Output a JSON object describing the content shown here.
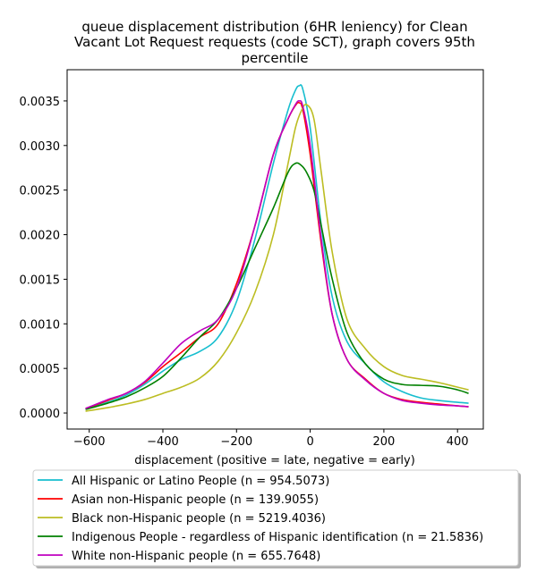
{
  "chart_data": {
    "type": "line",
    "title_lines": [
      "queue displacement distribution (6HR leniency) for Clean",
      "Vacant Lot Request  requests (code SCT), graph covers 95th",
      "percentile"
    ],
    "xlabel": "displacement (positive = late, negative = early)",
    "ylabel": "",
    "xlim": [
      -660,
      470
    ],
    "ylim": [
      -0.00018,
      0.00385
    ],
    "xticks": [
      -600,
      -400,
      -200,
      0,
      200,
      400
    ],
    "xtick_labels": [
      "−600",
      "−400",
      "−200",
      "0",
      "200",
      "400"
    ],
    "yticks": [
      0.0,
      0.0005,
      0.001,
      0.0015,
      0.002,
      0.0025,
      0.003,
      0.0035
    ],
    "ytick_labels": [
      "0.0000",
      "0.0005",
      "0.0010",
      "0.0015",
      "0.0020",
      "0.0025",
      "0.0030",
      "0.0035"
    ],
    "grid": false,
    "legend_position": "below",
    "series": [
      {
        "name": "All Hispanic or Latino People (n = 954.5073)",
        "color": "#17becf",
        "x": [
          -610,
          -550,
          -500,
          -450,
          -400,
          -350,
          -300,
          -250,
          -200,
          -150,
          -100,
          -60,
          -40,
          -30,
          -20,
          0,
          30,
          60,
          100,
          150,
          200,
          250,
          300,
          350,
          400,
          430
        ],
        "y": [
          5e-05,
          0.00012,
          0.0002,
          0.00032,
          0.00047,
          0.0006,
          0.00069,
          0.00085,
          0.00125,
          0.00195,
          0.0028,
          0.0034,
          0.00362,
          0.00367,
          0.00363,
          0.0032,
          0.0021,
          0.0013,
          0.0008,
          0.00055,
          0.00035,
          0.00024,
          0.00017,
          0.00014,
          0.00012,
          0.00011
        ]
      },
      {
        "name": "Asian non-Hispanic people (n = 139.9055)",
        "color": "#ff0000",
        "x": [
          -610,
          -550,
          -500,
          -450,
          -400,
          -350,
          -300,
          -250,
          -200,
          -150,
          -100,
          -60,
          -40,
          -30,
          -20,
          0,
          30,
          60,
          100,
          150,
          200,
          250,
          300,
          350,
          400,
          430
        ],
        "y": [
          5e-05,
          0.00014,
          0.00022,
          0.00034,
          0.00052,
          0.00068,
          0.00085,
          0.001,
          0.00145,
          0.0021,
          0.0029,
          0.0033,
          0.00345,
          0.00348,
          0.0034,
          0.0029,
          0.0019,
          0.0011,
          0.0006,
          0.00038,
          0.00022,
          0.00015,
          0.00012,
          0.0001,
          8e-05,
          7e-05
        ]
      },
      {
        "name": "Black non-Hispanic people (n = 5219.4036)",
        "color": "#bcbd22",
        "x": [
          -610,
          -550,
          -500,
          -450,
          -400,
          -350,
          -300,
          -250,
          -200,
          -150,
          -100,
          -60,
          -40,
          -25,
          -10,
          10,
          30,
          60,
          100,
          150,
          200,
          250,
          300,
          350,
          400,
          430
        ],
        "y": [
          2e-05,
          6e-05,
          0.0001,
          0.00015,
          0.00022,
          0.00029,
          0.00039,
          0.00058,
          0.0009,
          0.00135,
          0.002,
          0.0028,
          0.0032,
          0.00338,
          0.00346,
          0.0033,
          0.0027,
          0.0018,
          0.00105,
          0.00072,
          0.00052,
          0.00042,
          0.00038,
          0.00034,
          0.00029,
          0.00026
        ]
      },
      {
        "name": "Indigenous People - regardless of Hispanic identification (n = 21.5836)",
        "color": "#008000",
        "x": [
          -610,
          -550,
          -500,
          -450,
          -400,
          -350,
          -300,
          -250,
          -200,
          -150,
          -100,
          -60,
          -40,
          -25,
          -10,
          10,
          30,
          60,
          100,
          150,
          200,
          250,
          300,
          350,
          400,
          430
        ],
        "y": [
          4e-05,
          0.00011,
          0.00018,
          0.00028,
          0.00041,
          0.00062,
          0.00085,
          0.00105,
          0.0014,
          0.00185,
          0.0023,
          0.0027,
          0.0028,
          0.00278,
          0.0027,
          0.0025,
          0.0021,
          0.0015,
          0.0009,
          0.00055,
          0.00038,
          0.00032,
          0.00031,
          0.0003,
          0.00026,
          0.00022
        ]
      },
      {
        "name": "White non-Hispanic people (n = 655.7648)",
        "color": "#bf00bf",
        "x": [
          -610,
          -550,
          -500,
          -450,
          -400,
          -350,
          -300,
          -250,
          -200,
          -150,
          -100,
          -60,
          -40,
          -30,
          -20,
          0,
          30,
          60,
          100,
          150,
          200,
          250,
          300,
          350,
          400,
          430
        ],
        "y": [
          5e-05,
          0.00015,
          0.00022,
          0.00035,
          0.00056,
          0.00078,
          0.00092,
          0.00105,
          0.0014,
          0.0021,
          0.0029,
          0.0033,
          0.00346,
          0.0035,
          0.00344,
          0.003,
          0.00195,
          0.0011,
          0.0006,
          0.00037,
          0.00022,
          0.00014,
          0.00011,
          9e-05,
          8e-05,
          7e-05
        ]
      }
    ]
  }
}
